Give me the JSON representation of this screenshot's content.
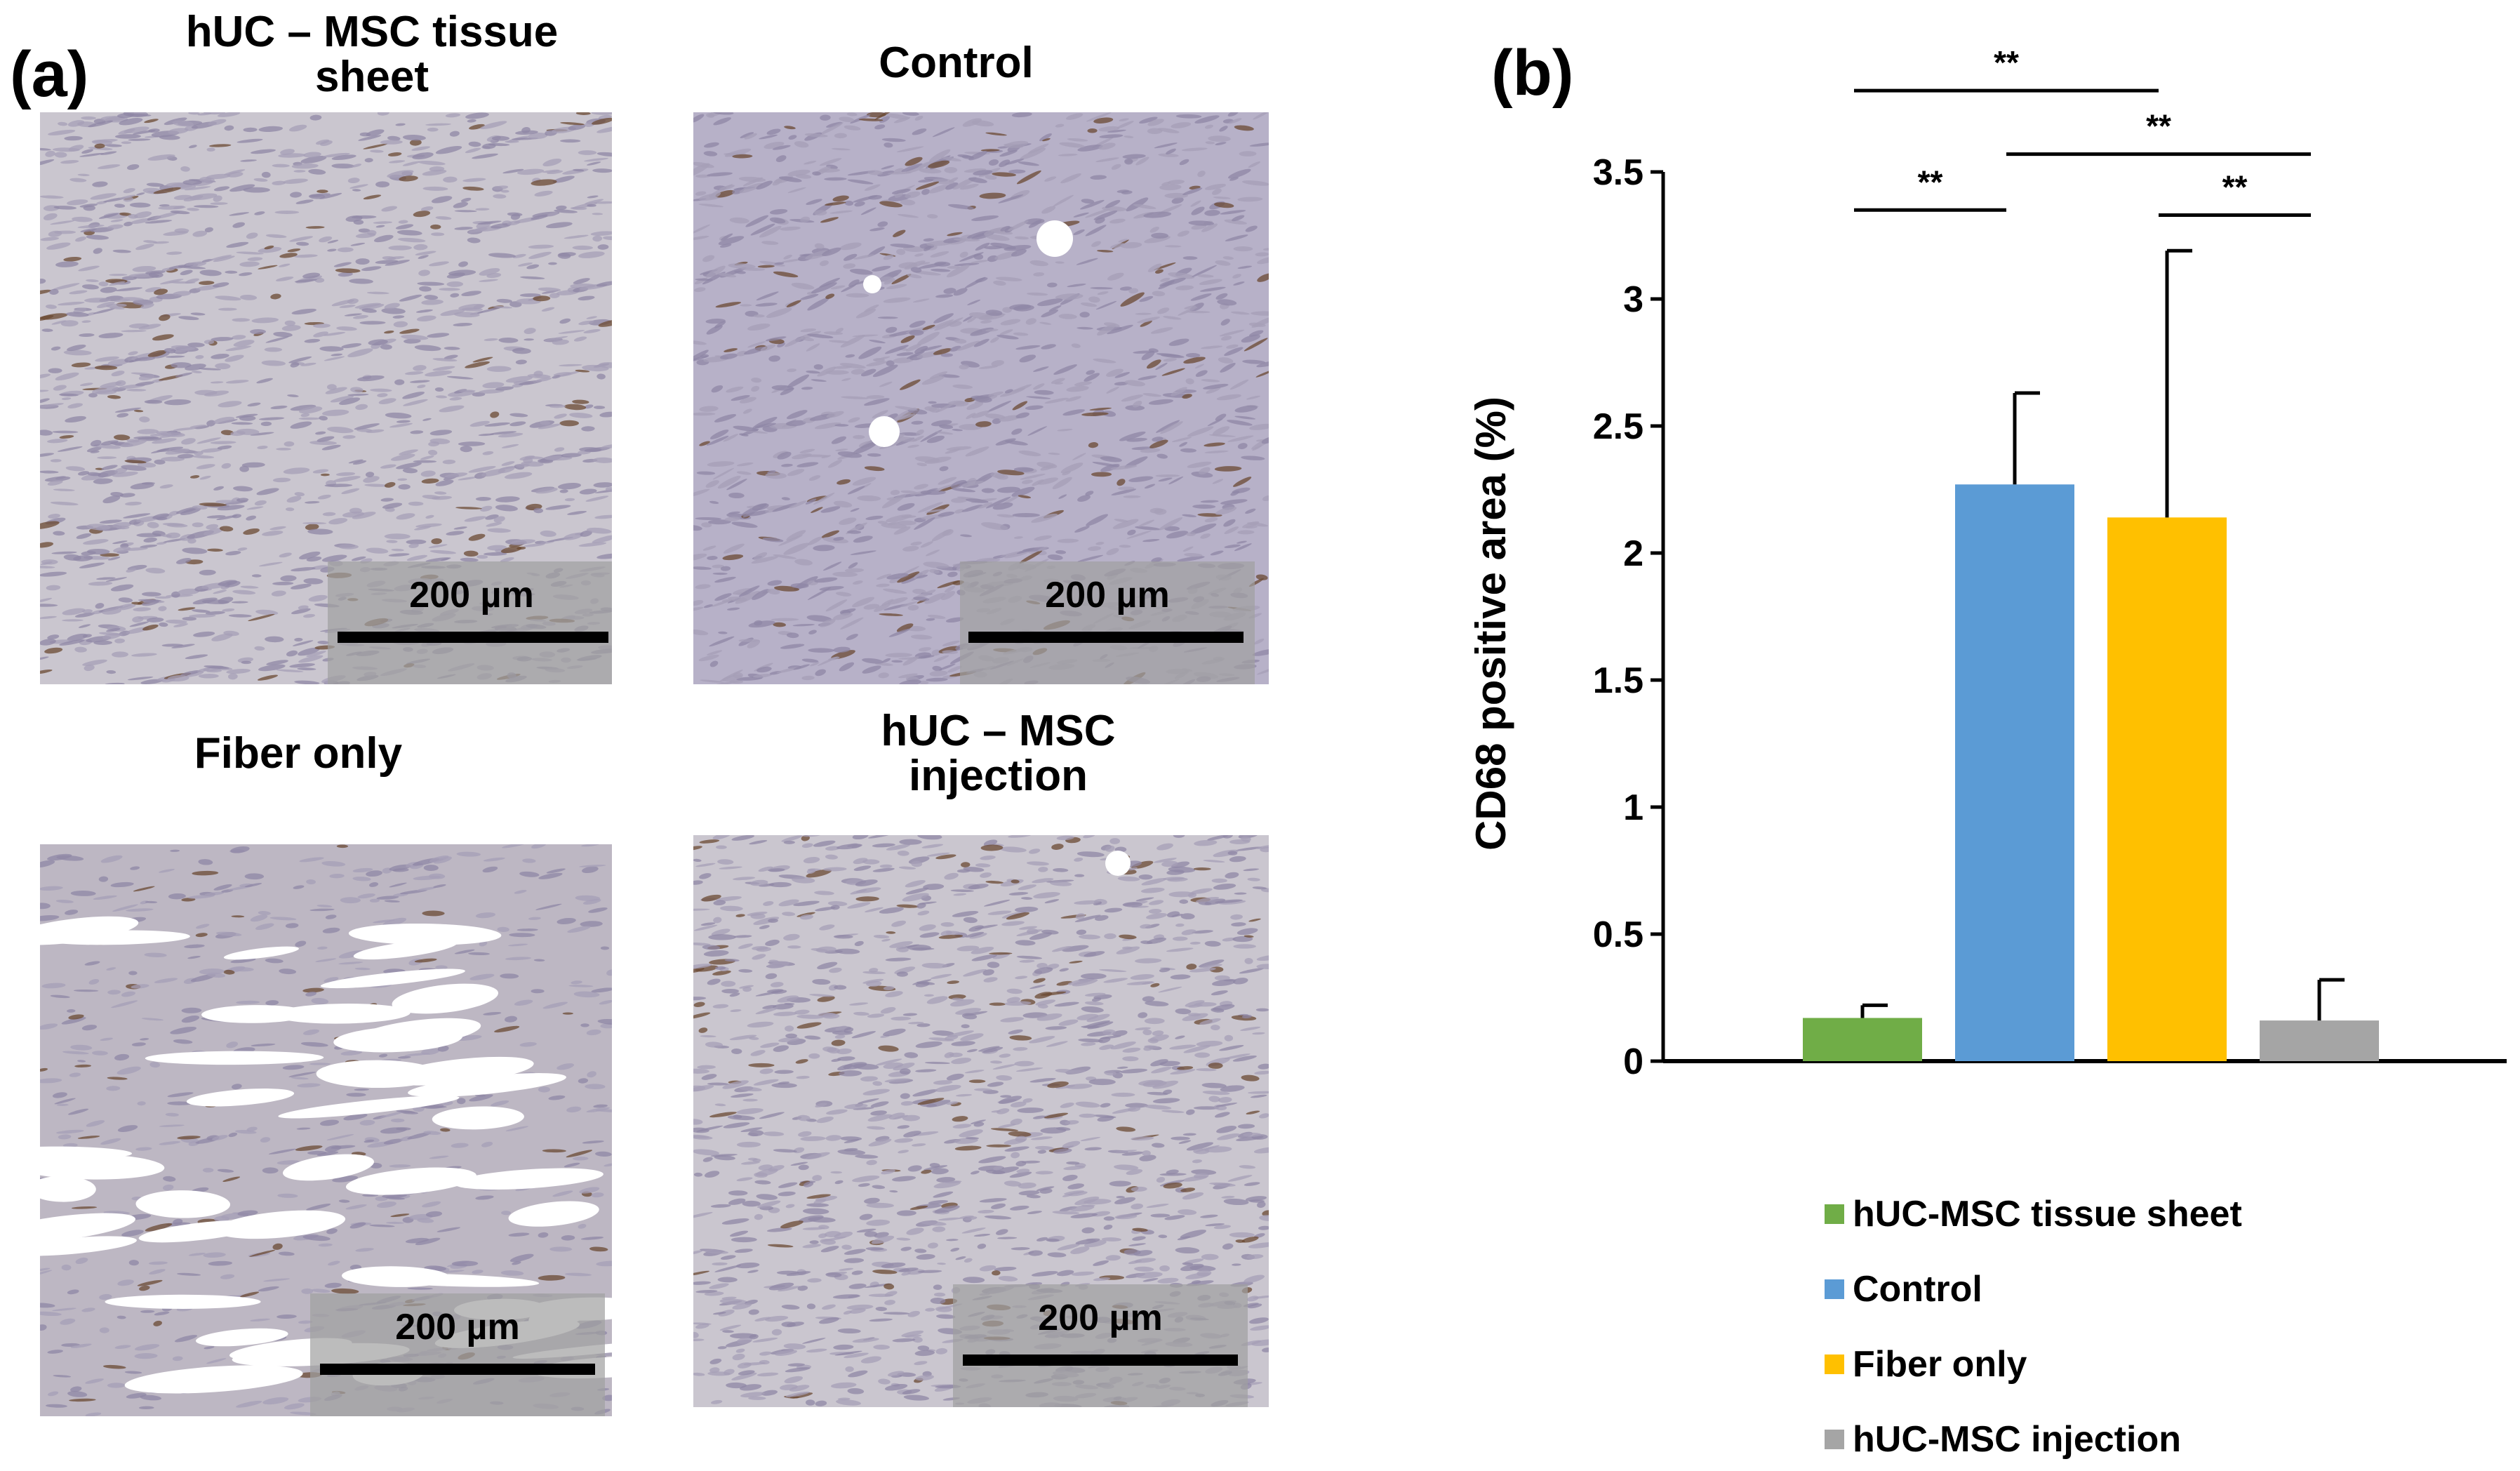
{
  "panel_a": {
    "label": "(a)",
    "images": [
      {
        "title": "hUC – MSC tissue\nsheet",
        "scalebar": "200 µm",
        "texture": "dense-faint"
      },
      {
        "title": "Control",
        "scalebar": "200 µm",
        "texture": "dense-purple"
      },
      {
        "title": "Fiber only",
        "scalebar": "200 µm",
        "texture": "fibrous-gaps"
      },
      {
        "title": "hUC – MSC\ninjection",
        "scalebar": "200 µm",
        "texture": "dense-faint"
      }
    ]
  },
  "panel_b": {
    "label": "(b)"
  },
  "chart_data": {
    "type": "bar",
    "title": "",
    "xlabel": "",
    "ylabel": "CD68 positive area (%)",
    "ylim": [
      0,
      3.5
    ],
    "yticks": [
      0,
      0.5,
      1,
      1.5,
      2,
      2.5,
      3,
      3.5
    ],
    "ytick_labels": [
      "0",
      "0.5",
      "1",
      "1.5",
      "2",
      "2.5",
      "3",
      "3.5"
    ],
    "categories": [
      "hUC-MSC tissue sheet",
      "Control",
      "Fiber only",
      "hUC-MSC injection"
    ],
    "values": [
      0.17,
      2.27,
      2.14,
      0.16
    ],
    "error_upper": [
      0.05,
      0.36,
      1.05,
      0.16
    ],
    "colors": [
      "#70ad47",
      "#5b9bd5",
      "#ffc000",
      "#a5a5a5"
    ],
    "legend": {
      "placement": "bottom",
      "entries": [
        "hUC-MSC tissue sheet",
        "Control",
        "Fiber only",
        "hUC-MSC injection"
      ]
    },
    "significance": [
      {
        "from": 0,
        "to": 1,
        "label": "**",
        "level": 3.35
      },
      {
        "from": 0,
        "to": 2,
        "label": "**",
        "level": 3.82
      },
      {
        "from": 1,
        "to": 3,
        "label": "**",
        "level": 3.57
      },
      {
        "from": 2,
        "to": 3,
        "label": "**",
        "level": 3.33
      }
    ]
  }
}
